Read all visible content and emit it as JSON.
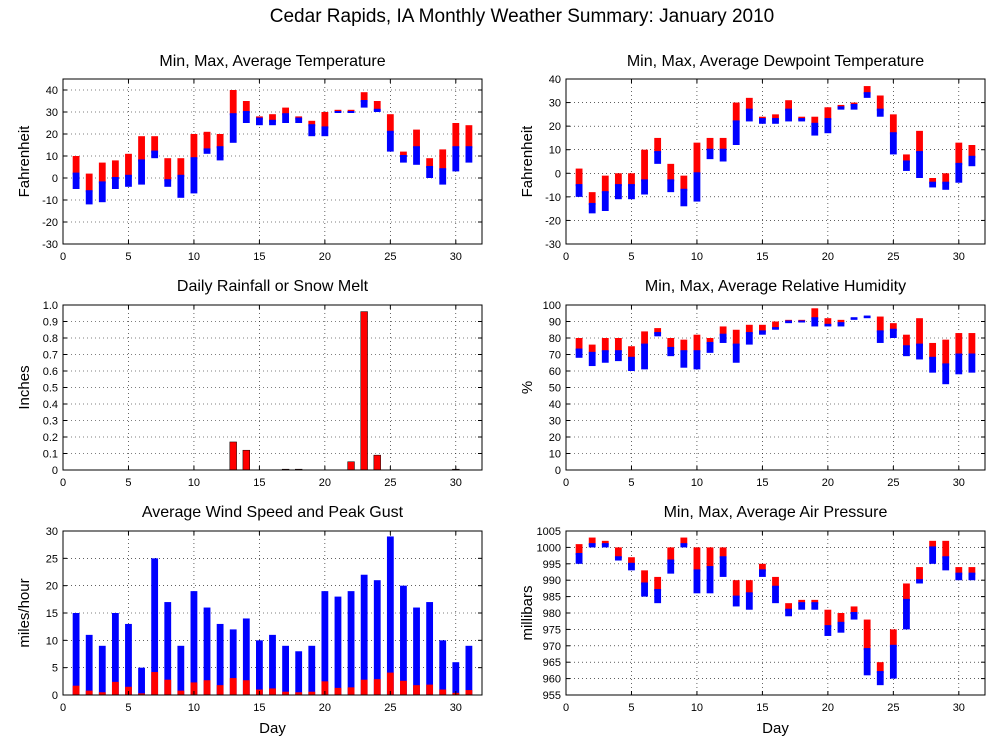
{
  "title": "Cedar Rapids, IA Monthly Weather Summary: January 2010",
  "colors": {
    "max_bar": "#ff0000",
    "min_bar": "#0000ff",
    "avg_line": "#0000ff"
  },
  "chart_data": [
    {
      "id": "temp",
      "type": "bar",
      "title": "Min, Max, Average Temperature",
      "xlabel": "",
      "ylabel": "Fahrenheit",
      "xlim": [
        0,
        32
      ],
      "ylim": [
        -30,
        45
      ],
      "xticks": [
        0,
        5,
        10,
        15,
        20,
        25,
        30
      ],
      "yticks": [
        -30,
        -20,
        -10,
        0,
        10,
        20,
        30,
        40
      ],
      "x": [
        1,
        2,
        3,
        4,
        5,
        6,
        7,
        8,
        9,
        10,
        11,
        12,
        13,
        14,
        15,
        16,
        17,
        18,
        19,
        20,
        21,
        22,
        23,
        24,
        25,
        26,
        27,
        28,
        29,
        30,
        31
      ],
      "series": [
        {
          "name": "max",
          "values": [
            10,
            2,
            7,
            8,
            11,
            19,
            19,
            9,
            9,
            20,
            21,
            20,
            40,
            35,
            28,
            29,
            32,
            28,
            26,
            30,
            31,
            31,
            39,
            35,
            29,
            12,
            22,
            9,
            13,
            25,
            24
          ]
        },
        {
          "name": "avg",
          "values": [
            2,
            -6,
            -2,
            0,
            1,
            8,
            12,
            -1,
            1,
            9,
            13,
            14,
            29,
            30,
            27,
            26,
            29,
            27,
            24,
            23,
            30,
            30,
            35,
            31,
            21,
            10,
            14,
            5,
            4,
            14,
            14
          ]
        },
        {
          "name": "min",
          "values": [
            -5,
            -12,
            -11,
            -5,
            -4,
            -3,
            9,
            -4,
            -9,
            -7,
            11,
            8,
            16,
            25,
            24,
            24,
            25,
            25,
            19,
            19,
            30,
            31,
            32,
            30,
            12,
            7,
            6,
            0,
            -3,
            3,
            7
          ]
        }
      ]
    },
    {
      "id": "dew",
      "type": "bar",
      "title": "Min, Max, Average Dewpoint Temperature",
      "xlabel": "",
      "ylabel": "Fahrenheit",
      "xlim": [
        0,
        32
      ],
      "ylim": [
        -30,
        40
      ],
      "xticks": [
        0,
        5,
        10,
        15,
        20,
        25,
        30
      ],
      "yticks": [
        -30,
        -20,
        -10,
        0,
        10,
        20,
        30,
        40
      ],
      "x": [
        1,
        2,
        3,
        4,
        5,
        6,
        7,
        8,
        9,
        10,
        11,
        12,
        13,
        14,
        15,
        16,
        17,
        18,
        19,
        20,
        21,
        22,
        23,
        24,
        25,
        26,
        27,
        28,
        29,
        30,
        31
      ],
      "series": [
        {
          "name": "max",
          "values": [
            2,
            -8,
            -1,
            0,
            0,
            10,
            15,
            4,
            -1,
            13,
            15,
            15,
            30,
            32,
            24,
            25,
            31,
            24,
            24,
            28,
            29,
            30,
            37,
            33,
            25,
            8,
            18,
            -2,
            0,
            13,
            12
          ]
        },
        {
          "name": "avg",
          "values": [
            -5,
            -13,
            -8,
            -5,
            -5,
            -3,
            9,
            -3,
            -7,
            0,
            10,
            10,
            22,
            27,
            23,
            23,
            27,
            23,
            21,
            23,
            28,
            29,
            34,
            27,
            17,
            5,
            9,
            -4,
            -4,
            4,
            7
          ]
        },
        {
          "name": "min",
          "values": [
            -10,
            -17,
            -16,
            -11,
            -11,
            -9,
            4,
            -8,
            -14,
            -12,
            6,
            5,
            12,
            22,
            21,
            21,
            22,
            22,
            16,
            17,
            27,
            27,
            32,
            24,
            8,
            1,
            -2,
            -6,
            -7,
            -4,
            3
          ]
        }
      ]
    },
    {
      "id": "rain",
      "type": "bar",
      "title": "Daily Rainfall or Snow Melt",
      "xlabel": "",
      "ylabel": "Inches",
      "xlim": [
        0,
        32
      ],
      "ylim": [
        0,
        1.0
      ],
      "xticks": [
        0,
        5,
        10,
        15,
        20,
        25,
        30
      ],
      "yticks": [
        0,
        0.1,
        0.2,
        0.3,
        0.4,
        0.5,
        0.6,
        0.7,
        0.8,
        0.9,
        1.0
      ],
      "ytick_labels": [
        "0",
        "0.1",
        "0.2",
        "0.3",
        "0.4",
        "0.5",
        "0.6",
        "0.7",
        "0.8",
        "0.9",
        "1.0"
      ],
      "x": [
        1,
        2,
        3,
        4,
        5,
        6,
        7,
        8,
        9,
        10,
        11,
        12,
        13,
        14,
        15,
        16,
        17,
        18,
        19,
        20,
        21,
        22,
        23,
        24,
        25,
        26,
        27,
        28,
        29,
        30,
        31
      ],
      "series": [
        {
          "name": "precip",
          "values": [
            0,
            0,
            0,
            0,
            0,
            0,
            0,
            0,
            0,
            0,
            0,
            0,
            0.17,
            0.12,
            0,
            0,
            0.005,
            0.005,
            0,
            0,
            0,
            0.05,
            0.96,
            0.09,
            0,
            0,
            0,
            0,
            0,
            0.005,
            0
          ]
        }
      ]
    },
    {
      "id": "rh",
      "type": "bar",
      "title": "Min, Max, Average Relative Humidity",
      "xlabel": "",
      "ylabel": "%",
      "xlim": [
        0,
        32
      ],
      "ylim": [
        0,
        100
      ],
      "xticks": [
        0,
        5,
        10,
        15,
        20,
        25,
        30
      ],
      "yticks": [
        0,
        10,
        20,
        30,
        40,
        50,
        60,
        70,
        80,
        90,
        100
      ],
      "x": [
        1,
        2,
        3,
        4,
        5,
        6,
        7,
        8,
        9,
        10,
        11,
        12,
        13,
        14,
        15,
        16,
        17,
        18,
        19,
        20,
        21,
        22,
        23,
        24,
        25,
        26,
        27,
        28,
        29,
        30,
        31
      ],
      "series": [
        {
          "name": "max",
          "values": [
            80,
            76,
            80,
            80,
            75,
            84,
            86,
            80,
            79,
            82,
            80,
            87,
            85,
            88,
            88,
            90,
            91,
            91,
            98,
            92,
            91,
            92,
            93,
            93,
            89,
            82,
            92,
            77,
            79,
            83,
            83
          ]
        },
        {
          "name": "avg",
          "values": [
            73,
            71,
            72,
            72,
            68,
            76,
            83,
            74,
            72,
            72,
            77,
            82,
            76,
            83,
            84,
            86,
            90,
            90,
            92,
            88,
            89,
            92,
            93,
            84,
            85,
            75,
            76,
            68,
            64,
            70,
            70
          ]
        },
        {
          "name": "min",
          "values": [
            68,
            63,
            65,
            66,
            60,
            61,
            81,
            69,
            62,
            61,
            71,
            77,
            65,
            76,
            82,
            85,
            89,
            90,
            87,
            87,
            87,
            91,
            92,
            77,
            80,
            69,
            67,
            59,
            52,
            58,
            59
          ]
        }
      ]
    },
    {
      "id": "wind",
      "type": "bar",
      "title": "Average Wind Speed and Peak Gust",
      "xlabel": "Day",
      "ylabel": "miles/hour",
      "xlim": [
        0,
        32
      ],
      "ylim": [
        0,
        30
      ],
      "xticks": [
        0,
        5,
        10,
        15,
        20,
        25,
        30
      ],
      "yticks": [
        0,
        5,
        10,
        15,
        20,
        25,
        30
      ],
      "x": [
        1,
        2,
        3,
        4,
        5,
        6,
        7,
        8,
        9,
        10,
        11,
        12,
        13,
        14,
        15,
        16,
        17,
        18,
        19,
        20,
        21,
        22,
        23,
        24,
        25,
        26,
        27,
        28,
        29,
        30,
        31
      ],
      "series": [
        {
          "name": "peak_gust",
          "values": [
            15,
            11,
            9,
            15,
            13,
            5,
            25,
            17,
            9,
            19,
            16,
            13,
            12,
            14,
            10,
            11,
            9,
            8,
            9,
            19,
            18,
            19,
            22,
            21,
            29,
            20,
            16,
            17,
            10,
            6,
            9
          ]
        },
        {
          "name": "avg_speed",
          "values": [
            1.7,
            0.8,
            0.5,
            2.4,
            1.5,
            0.3,
            4.2,
            2.8,
            0.8,
            2.3,
            2.7,
            1.8,
            3.1,
            2.7,
            1.0,
            1.2,
            0.6,
            0.5,
            0.6,
            2.5,
            1.3,
            1.4,
            2.8,
            2.9,
            4.1,
            2.6,
            1.8,
            1.9,
            1.0,
            0.4,
            0.9
          ]
        }
      ]
    },
    {
      "id": "pres",
      "type": "bar",
      "title": "Min, Max, Average Air Pressure",
      "xlabel": "Day",
      "ylabel": "millibars",
      "xlim": [
        0,
        32
      ],
      "ylim": [
        955,
        1005
      ],
      "xticks": [
        0,
        5,
        10,
        15,
        20,
        25,
        30
      ],
      "yticks": [
        955,
        960,
        965,
        970,
        975,
        980,
        985,
        990,
        995,
        1000,
        1005
      ],
      "x": [
        1,
        2,
        3,
        4,
        5,
        6,
        7,
        8,
        9,
        10,
        11,
        12,
        13,
        14,
        15,
        16,
        17,
        18,
        19,
        20,
        21,
        22,
        23,
        24,
        25,
        26,
        27,
        28,
        29,
        30,
        31
      ],
      "series": [
        {
          "name": "max",
          "values": [
            1001,
            1003,
            1002,
            1000,
            997,
            993,
            991,
            1000,
            1003,
            1000,
            1000,
            1000,
            990,
            990,
            995,
            991,
            983,
            984,
            984,
            981,
            980,
            982,
            978,
            965,
            975,
            989,
            994,
            1002,
            1002,
            994,
            994
          ]
        },
        {
          "name": "avg",
          "values": [
            998,
            1001,
            1001,
            997,
            995,
            989,
            987,
            996,
            1001,
            993,
            994,
            997,
            985,
            986,
            993,
            988,
            981,
            983,
            983,
            976,
            977,
            980,
            969,
            962,
            970,
            984,
            990,
            1000,
            997,
            992,
            992
          ]
        },
        {
          "name": "min",
          "values": [
            995,
            1000,
            1000,
            996,
            993,
            985,
            983,
            992,
            1000,
            986,
            986,
            991,
            982,
            981,
            991,
            983,
            979,
            981,
            981,
            973,
            974,
            978,
            961,
            958,
            960,
            975,
            989,
            995,
            993,
            990,
            990
          ]
        }
      ]
    }
  ]
}
